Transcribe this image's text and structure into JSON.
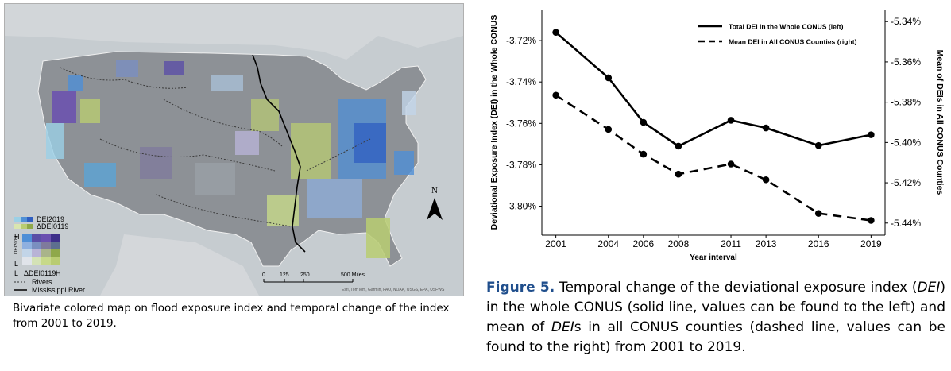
{
  "map": {
    "caption": "Bivariate colored map on flood exposure index and temporal change of the index from 2001 to 2019.",
    "legend": {
      "dei_label": "DEI2019",
      "delta_label": "ΔDEI0119",
      "axis_y": "H",
      "axis_y_low": "L",
      "axis_y_title": "DEI2019",
      "axis_x_low": "L",
      "axis_x_title": "ΔDEI0119",
      "axis_x_high": "H",
      "rivers_label": "Rivers",
      "mississippi_label": "Mississippi River"
    },
    "north_label": "N",
    "scale_ticks": [
      "0",
      "125",
      "250",
      "500 Miles"
    ],
    "credits": "Esri, TomTom, Garmin, FAO, NOAA, USGS, EPA, USFWS",
    "colors": {
      "background": "#c6ccd0",
      "land": "#8d9196",
      "purple": "#6a4fb0",
      "blue": "#4f8fd6",
      "green": "#b9cc72",
      "river": "#000000"
    }
  },
  "chart_data": {
    "type": "line",
    "x": [
      2001,
      2004,
      2006,
      2008,
      2011,
      2013,
      2016,
      2019
    ],
    "x_tick_labels": [
      "2001",
      "2004",
      "2006",
      "2008",
      "2011",
      "2013",
      "2016",
      "2019"
    ],
    "xlabel": "Year interval",
    "ylabel_left": "Deviational Exposure Index (DEI) in the Whole CONUS",
    "ylabel_right": "Mean of DEIs in All CONUS Counties",
    "ylim_left": [
      -3.814,
      -3.705
    ],
    "ylim_right": [
      -5.446,
      -5.334
    ],
    "yticks_left": [
      -3.72,
      -3.74,
      -3.76,
      -3.78,
      -3.8
    ],
    "yticks_left_labels": [
      "-3.72%",
      "-3.74%",
      "-3.76%",
      "-3.78%",
      "-3.80%"
    ],
    "yticks_right": [
      -5.34,
      -5.36,
      -5.38,
      -5.4,
      -5.42,
      -5.44
    ],
    "yticks_right_labels": [
      "-5.34%",
      "-5.36%",
      "-5.38%",
      "-5.40%",
      "-5.42%",
      "-5.44%"
    ],
    "series": [
      {
        "name": "Total DEI in the Whole CONUS (left)",
        "axis": "left",
        "style": "solid",
        "values": [
          -3.716,
          -3.738,
          -3.7595,
          -3.771,
          -3.7585,
          -3.7622,
          -3.7707,
          -3.7655
        ]
      },
      {
        "name": "Mean DEI in All CONUS Counties (right)",
        "axis": "right",
        "style": "dashed",
        "values": [
          -5.3765,
          -5.3935,
          -5.4058,
          -5.4157,
          -5.4107,
          -5.4185,
          -5.4352,
          -5.4387
        ]
      }
    ]
  },
  "figure_caption": {
    "label": "Figure 5.",
    "text_1": " Temporal change of the deviational exposure index (",
    "text_2": "DEI",
    "text_3": ") in the whole CONUS (solid line, values can be found to the left) and mean of ",
    "text_4": "DEI",
    "text_5": "s in all CONUS counties (dashed line, values can be found to the right) from 2001 to 2019."
  }
}
